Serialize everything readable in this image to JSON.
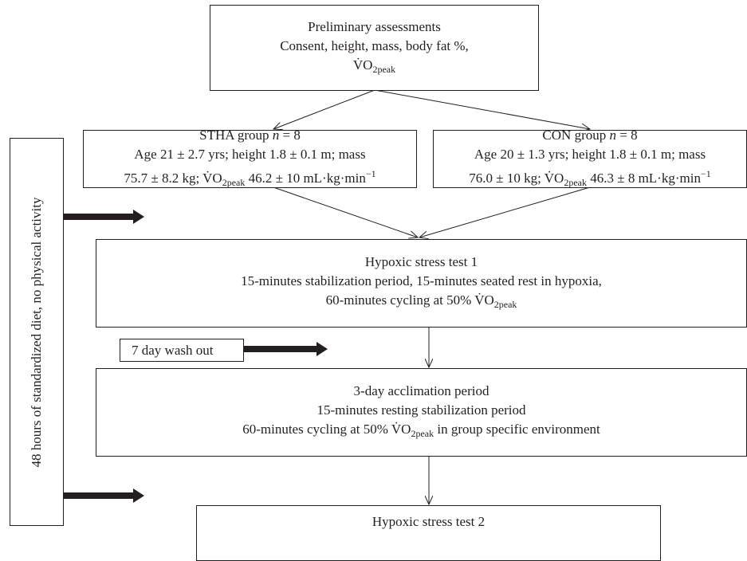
{
  "nodes": [
    {
      "lines": [
        [
          "Preliminary assessments"
        ],
        [
          "Consent, height, mass, body fat %,"
        ],
        [
          "V̇O",
          "2peak"
        ]
      ]
    },
    {
      "lines": [
        [
          "STHA group ",
          "n",
          " = 8"
        ],
        [
          "Age 21 ± 2.7 yrs; height 1.8 ± 0.1 m; mass"
        ],
        [
          "75.7 ± 8.2 kg; V̇O",
          "2peak",
          " 46.2 ± 10 mL·kg·min",
          "−1"
        ]
      ]
    },
    {
      "lines": [
        [
          "CON group ",
          "n",
          " = 8"
        ],
        [
          "Age 20 ± 1.3 yrs; height 1.8 ± 0.1 m; mass"
        ],
        [
          "76.0 ± 10 kg; V̇O",
          "2peak",
          " 46.3 ± 8 mL·kg·min",
          "−1"
        ]
      ]
    },
    {
      "lines": [
        [
          "Hypoxic stress test 1"
        ],
        [
          "15-minutes stabilization period, 15-minutes seated rest in hypoxia,"
        ],
        [
          "60-minutes cycling at 50% V̇O",
          "2peak"
        ]
      ]
    },
    {
      "lines": [
        [
          "3-day acclimation period"
        ],
        [
          "15-minutes resting stabilization period"
        ],
        [
          "60-minutes cycling at 50% V̇O",
          "2peak",
          " in group specific environment"
        ]
      ]
    },
    {
      "lines": [
        [
          "Hypoxic stress test 2"
        ]
      ]
    }
  ],
  "side_labels": {
    "washout": "7 day wash out",
    "vertical": "48 hours of standardized diet, no physical activity"
  }
}
